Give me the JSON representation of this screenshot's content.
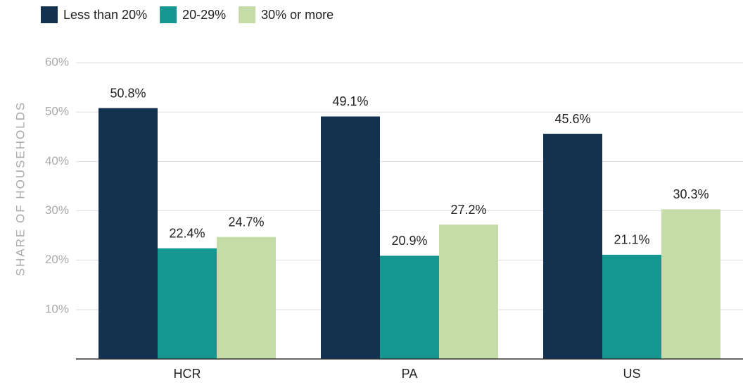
{
  "chart_data": {
    "type": "bar",
    "y_label": "SHARE OF HOUSEHOLDS",
    "categories": [
      "HCR",
      "PA",
      "US"
    ],
    "series": [
      {
        "name": "Less than 20%",
        "color": "#12324f",
        "values": [
          50.8,
          49.1,
          45.6
        ],
        "value_labels": [
          "50.8%",
          "49.1%",
          "45.6%"
        ]
      },
      {
        "name": "20-29%",
        "color": "#169690",
        "values": [
          22.4,
          20.9,
          21.1
        ],
        "value_labels": [
          "22.4%",
          "20.9%",
          "21.1%"
        ]
      },
      {
        "name": "30% or more",
        "color": "#c5dca8",
        "values": [
          24.7,
          27.2,
          30.3
        ],
        "value_labels": [
          "24.7%",
          "27.2%",
          "30.3%"
        ]
      }
    ],
    "ylim": [
      0,
      60
    ],
    "yticks": [
      {
        "value": 10,
        "label": "10%"
      },
      {
        "value": 20,
        "label": "20%"
      },
      {
        "value": 30,
        "label": "30%"
      },
      {
        "value": 40,
        "label": "40%"
      },
      {
        "value": 50,
        "label": "50%"
      },
      {
        "value": 60,
        "label": "60%"
      }
    ],
    "grid": true,
    "legend": "top-left"
  }
}
